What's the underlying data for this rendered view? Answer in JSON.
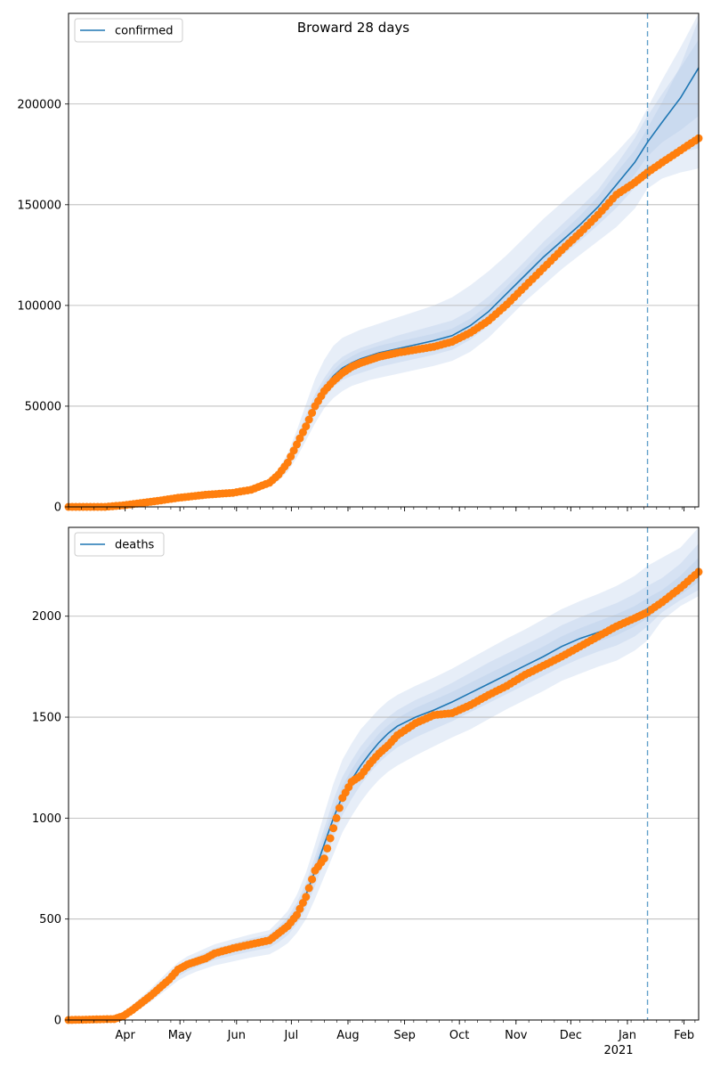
{
  "figure": {
    "title": "Broward 28 days",
    "xaxis": {
      "month_labels": [
        "Apr",
        "May",
        "Jun",
        "Jul",
        "Aug",
        "Sep",
        "Oct",
        "Nov",
        "Dec",
        "Jan",
        "Feb"
      ],
      "year_label": "2021"
    }
  },
  "colors": {
    "model_line": "#1f77b4",
    "observed": "#ff7f0e",
    "band": "#aec7e8",
    "grid": "#b0b0b0",
    "forecast_start_line": "#1f77b4"
  },
  "chart_data": [
    {
      "type": "line",
      "name": "confirmed-panel",
      "legend": "confirmed",
      "x_unit": "days since 2020-03-01",
      "xlim": [
        0,
        345
      ],
      "ylim": [
        0,
        245000
      ],
      "yticks": [
        0,
        50000,
        100000,
        150000,
        200000
      ],
      "forecast_start_day": 317,
      "model_x": [
        0,
        20,
        30,
        45,
        60,
        75,
        90,
        100,
        110,
        115,
        120,
        125,
        130,
        135,
        140,
        145,
        150,
        155,
        160,
        165,
        170,
        175,
        180,
        190,
        200,
        210,
        220,
        230,
        240,
        250,
        260,
        270,
        280,
        290,
        300,
        310,
        317,
        325,
        335,
        345
      ],
      "model_y": [
        0,
        0,
        800,
        2500,
        4500,
        6000,
        7000,
        8500,
        12000,
        16000,
        22000,
        31000,
        41000,
        51000,
        59000,
        65000,
        69000,
        71500,
        73500,
        75000,
        76500,
        77500,
        78500,
        80500,
        82500,
        85000,
        90000,
        97000,
        106000,
        115000,
        124000,
        132000,
        140000,
        149000,
        160000,
        171000,
        181000,
        191000,
        203000,
        218000
      ],
      "observed_x": [
        0,
        20,
        30,
        45,
        60,
        75,
        90,
        100,
        110,
        115,
        120,
        125,
        130,
        135,
        140,
        145,
        150,
        155,
        160,
        165,
        170,
        175,
        180,
        190,
        200,
        210,
        220,
        230,
        240,
        250,
        260,
        270,
        280,
        290,
        300,
        310,
        317,
        325,
        335,
        345
      ],
      "observed_y": [
        0,
        0,
        800,
        2500,
        4500,
        6000,
        7000,
        8500,
        12000,
        16000,
        22000,
        31000,
        40000,
        50000,
        57500,
        62500,
        66500,
        69500,
        71500,
        73000,
        74500,
        75500,
        76500,
        78000,
        79500,
        82000,
        86500,
        92500,
        100500,
        109500,
        118500,
        127500,
        136000,
        145000,
        155000,
        161000,
        166000,
        171000,
        177000,
        183000
      ],
      "band_x": [
        0,
        20,
        30,
        45,
        60,
        75,
        90,
        100,
        110,
        115,
        120,
        125,
        130,
        135,
        140,
        145,
        150,
        155,
        160,
        165,
        170,
        175,
        180,
        190,
        200,
        210,
        220,
        230,
        240,
        250,
        260,
        270,
        280,
        290,
        300,
        310,
        317,
        325,
        335,
        345
      ],
      "band_outer_low": [
        0,
        0,
        600,
        2000,
        3800,
        5200,
        6000,
        7200,
        10000,
        13000,
        17500,
        24500,
        33000,
        41500,
        49000,
        54000,
        57500,
        60000,
        61500,
        63000,
        64000,
        65000,
        66000,
        68000,
        70000,
        72500,
        77000,
        84000,
        93000,
        102000,
        110000,
        118000,
        125000,
        132000,
        139000,
        148000,
        158000,
        163000,
        166000,
        168000
      ],
      "band_outer_high": [
        0,
        0,
        1000,
        3000,
        5200,
        6800,
        8000,
        9800,
        14000,
        19000,
        26500,
        38000,
        51000,
        63500,
        73000,
        80000,
        84000,
        86000,
        88000,
        89500,
        91000,
        92500,
        94000,
        97000,
        100000,
        104000,
        110000,
        117000,
        125000,
        134000,
        143000,
        151000,
        159000,
        167000,
        176000,
        186000,
        198000,
        212000,
        228000,
        245000
      ],
      "band_mid_low": [
        0,
        0,
        700,
        2200,
        4100,
        5500,
        6500,
        7800,
        11000,
        14500,
        19500,
        28000,
        37000,
        46500,
        54000,
        59500,
        63000,
        65000,
        66500,
        68000,
        69500,
        70500,
        71500,
        73500,
        75500,
        78000,
        83000,
        90000,
        99000,
        108000,
        116500,
        124500,
        132000,
        140000,
        148500,
        158500,
        166000,
        172000,
        176000,
        178000
      ],
      "band_mid_high": [
        0,
        0,
        900,
        2800,
        4900,
        6500,
        7600,
        9200,
        13000,
        17500,
        24500,
        34500,
        45500,
        56000,
        64000,
        70500,
        74500,
        77000,
        79000,
        80500,
        82000,
        83500,
        85000,
        87500,
        90000,
        92500,
        97500,
        104500,
        113000,
        122000,
        131500,
        140000,
        148500,
        157500,
        170000,
        183000,
        194000,
        205000,
        218000,
        232000
      ],
      "band_inner_low": [
        0,
        0,
        750,
        2350,
        4300,
        5750,
        6750,
        8150,
        11500,
        15200,
        20700,
        29500,
        39000,
        48700,
        56500,
        62200,
        66000,
        68300,
        70000,
        71500,
        73000,
        74000,
        75000,
        77000,
        79000,
        81500,
        86500,
        93500,
        102500,
        111500,
        120000,
        128000,
        135500,
        144000,
        154000,
        165000,
        174000,
        181000,
        187000,
        194000
      ],
      "band_inner_high": [
        0,
        0,
        850,
        2650,
        4700,
        6250,
        7250,
        8850,
        12500,
        16800,
        23300,
        32500,
        43000,
        53300,
        61500,
        67800,
        72000,
        74700,
        77000,
        78500,
        80000,
        81000,
        82000,
        84000,
        86000,
        88500,
        93500,
        100500,
        109500,
        118500,
        128000,
        136000,
        144500,
        154000,
        166000,
        177000,
        188000,
        201000,
        219000,
        242000
      ]
    },
    {
      "type": "line",
      "name": "deaths-panel",
      "legend": "deaths",
      "x_unit": "days since 2020-03-01",
      "xlim": [
        0,
        345
      ],
      "ylim": [
        0,
        2440
      ],
      "yticks": [
        0,
        500,
        1000,
        1500,
        2000
      ],
      "forecast_start_day": 317,
      "model_x": [
        0,
        25,
        30,
        35,
        40,
        45,
        50,
        55,
        60,
        65,
        70,
        75,
        80,
        90,
        100,
        110,
        115,
        120,
        125,
        130,
        135,
        140,
        145,
        150,
        155,
        160,
        165,
        170,
        175,
        180,
        190,
        200,
        210,
        220,
        230,
        240,
        250,
        260,
        270,
        280,
        290,
        300,
        310,
        317,
        325,
        335,
        345
      ],
      "model_y": [
        0,
        5,
        20,
        50,
        85,
        120,
        160,
        200,
        240,
        270,
        290,
        310,
        330,
        355,
        375,
        395,
        430,
        470,
        530,
        620,
        740,
        870,
        1000,
        1110,
        1190,
        1260,
        1320,
        1375,
        1420,
        1455,
        1500,
        1535,
        1575,
        1620,
        1665,
        1710,
        1755,
        1800,
        1850,
        1890,
        1920,
        1950,
        1990,
        2025,
        2070,
        2130,
        2210
      ],
      "observed_x": [
        0,
        25,
        30,
        35,
        40,
        45,
        50,
        55,
        60,
        65,
        70,
        75,
        80,
        90,
        100,
        110,
        115,
        120,
        125,
        130,
        135,
        140,
        145,
        150,
        155,
        160,
        165,
        170,
        175,
        180,
        190,
        200,
        210,
        220,
        230,
        240,
        250,
        260,
        270,
        280,
        290,
        300,
        310,
        317,
        325,
        335,
        345
      ],
      "observed_y": [
        0,
        5,
        20,
        50,
        85,
        120,
        160,
        200,
        250,
        275,
        290,
        305,
        330,
        355,
        375,
        395,
        430,
        465,
        520,
        610,
        740,
        800,
        950,
        1100,
        1180,
        1210,
        1270,
        1320,
        1360,
        1410,
        1470,
        1510,
        1520,
        1560,
        1610,
        1655,
        1710,
        1755,
        1800,
        1850,
        1900,
        1950,
        1990,
        2020,
        2070,
        2140,
        2220
      ],
      "band_x": [
        0,
        25,
        30,
        35,
        40,
        45,
        50,
        55,
        60,
        65,
        70,
        75,
        80,
        90,
        100,
        110,
        115,
        120,
        125,
        130,
        135,
        140,
        145,
        150,
        155,
        160,
        165,
        170,
        175,
        180,
        190,
        200,
        210,
        220,
        230,
        240,
        250,
        260,
        270,
        280,
        290,
        300,
        310,
        317,
        325,
        335,
        345
      ],
      "band_outer_low": [
        0,
        0,
        10,
        30,
        60,
        90,
        125,
        160,
        195,
        220,
        240,
        255,
        270,
        290,
        310,
        325,
        350,
        380,
        430,
        500,
        600,
        710,
        820,
        930,
        1010,
        1080,
        1140,
        1190,
        1230,
        1260,
        1310,
        1355,
        1400,
        1440,
        1490,
        1540,
        1585,
        1630,
        1680,
        1715,
        1750,
        1780,
        1830,
        1880,
        1980,
        2050,
        2100
      ],
      "band_outer_high": [
        0,
        10,
        35,
        75,
        115,
        155,
        200,
        245,
        285,
        315,
        335,
        355,
        375,
        400,
        425,
        445,
        490,
        540,
        620,
        730,
        870,
        1020,
        1170,
        1290,
        1370,
        1440,
        1490,
        1540,
        1580,
        1610,
        1655,
        1695,
        1740,
        1790,
        1840,
        1890,
        1935,
        1985,
        2035,
        2075,
        2110,
        2150,
        2200,
        2250,
        2290,
        2340,
        2440
      ],
      "band_mid_low": [
        0,
        2,
        14,
        38,
        70,
        102,
        140,
        178,
        215,
        242,
        262,
        280,
        298,
        320,
        340,
        358,
        385,
        420,
        475,
        555,
        665,
        785,
        905,
        1015,
        1095,
        1165,
        1225,
        1275,
        1315,
        1350,
        1400,
        1440,
        1480,
        1525,
        1570,
        1615,
        1660,
        1705,
        1750,
        1790,
        1825,
        1855,
        1900,
        1950,
        2020,
        2080,
        2130
      ],
      "band_mid_high": [
        0,
        8,
        28,
        64,
        102,
        140,
        182,
        224,
        265,
        295,
        315,
        335,
        355,
        380,
        405,
        425,
        465,
        510,
        580,
        680,
        810,
        950,
        1090,
        1205,
        1285,
        1355,
        1410,
        1460,
        1500,
        1535,
        1585,
        1625,
        1670,
        1720,
        1770,
        1815,
        1860,
        1905,
        1955,
        1995,
        2030,
        2065,
        2110,
        2150,
        2190,
        2260,
        2360
      ],
      "band_inner_low": [
        0,
        3,
        17,
        44,
        78,
        112,
        150,
        190,
        228,
        257,
        277,
        296,
        315,
        338,
        358,
        377,
        405,
        445,
        505,
        590,
        705,
        830,
        955,
        1065,
        1145,
        1215,
        1275,
        1325,
        1365,
        1400,
        1450,
        1490,
        1530,
        1575,
        1620,
        1665,
        1710,
        1755,
        1800,
        1840,
        1875,
        1905,
        1950,
        1990,
        2045,
        2105,
        2170
      ],
      "band_inner_high": [
        0,
        7,
        24,
        58,
        94,
        130,
        170,
        212,
        252,
        284,
        304,
        324,
        344,
        370,
        392,
        412,
        455,
        495,
        560,
        655,
        780,
        915,
        1045,
        1160,
        1240,
        1310,
        1365,
        1420,
        1460,
        1495,
        1545,
        1585,
        1625,
        1670,
        1715,
        1760,
        1805,
        1850,
        1900,
        1940,
        1975,
        2010,
        2050,
        2090,
        2130,
        2200,
        2290
      ]
    }
  ]
}
